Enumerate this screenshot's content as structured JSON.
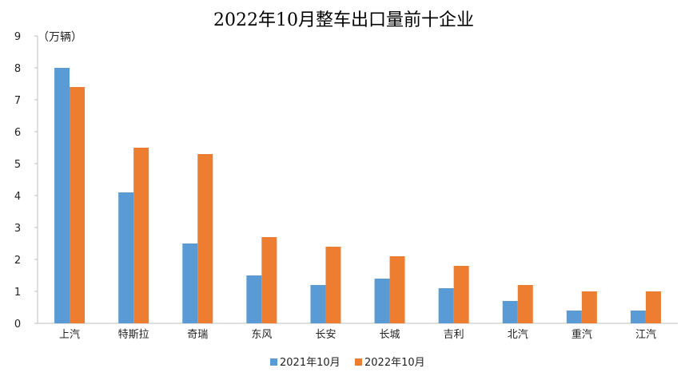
{
  "chart_data": {
    "type": "bar",
    "title": "2022年10月整车出口量前十企业",
    "unit_label": "（万辆）",
    "categories": [
      "上汽",
      "特斯拉",
      "奇瑞",
      "东风",
      "长安",
      "长城",
      "吉利",
      "北汽",
      "重汽",
      "江汽"
    ],
    "series": [
      {
        "name": "2021年10月",
        "color": "#5b9bd5",
        "values": [
          8.0,
          4.1,
          2.5,
          1.5,
          1.2,
          1.4,
          1.1,
          0.7,
          0.4,
          0.4
        ]
      },
      {
        "name": "2022年10月",
        "color": "#ed7d31",
        "values": [
          7.4,
          5.5,
          5.3,
          2.7,
          2.4,
          2.1,
          1.8,
          1.2,
          1.0,
          1.0
        ]
      }
    ],
    "ylim": [
      0,
      9
    ],
    "yticks": [
      0,
      1,
      2,
      3,
      4,
      5,
      6,
      7,
      8,
      9
    ],
    "grid": false,
    "legend_position": "bottom"
  }
}
